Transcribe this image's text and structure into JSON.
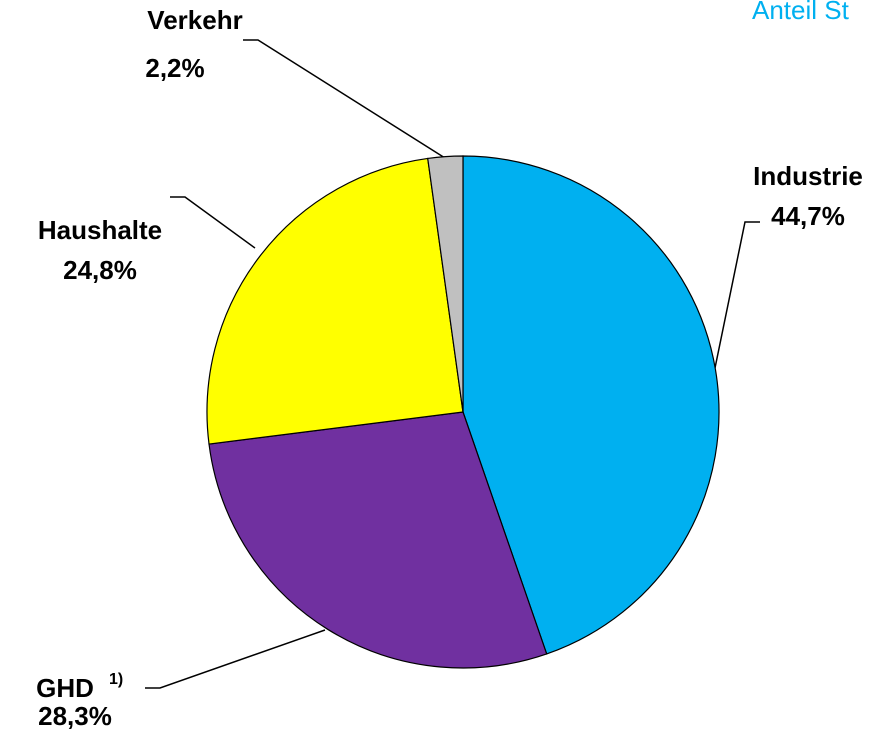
{
  "chart_data": {
    "type": "pie",
    "title": "Anteil St",
    "categories": [
      "Industrie",
      "GHD",
      "Haushalte",
      "Verkehr"
    ],
    "values": [
      44.7,
      28.3,
      24.8,
      2.2
    ],
    "value_labels": [
      "44,7%",
      "28,3%",
      "24,8%",
      "2,2%"
    ],
    "colors": [
      "#00b0f0",
      "#7030a0",
      "#ffff00",
      "#c0c0c0"
    ],
    "footnote": "1)"
  }
}
